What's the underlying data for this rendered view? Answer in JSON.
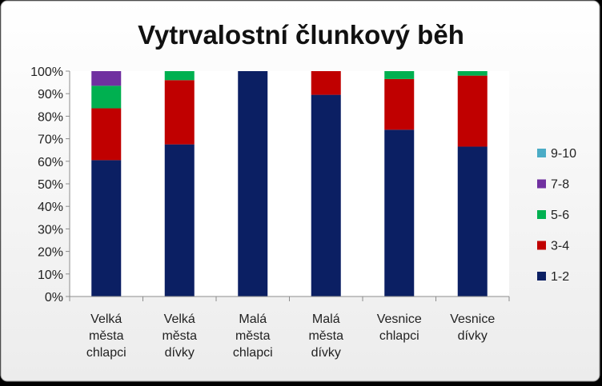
{
  "chart_data": {
    "type": "bar",
    "stacked": true,
    "percent_stacked": true,
    "title": "Vytrvalostní člunkový běh",
    "categories": [
      [
        "Velká",
        "města",
        "chlapci"
      ],
      [
        "Velká",
        "města",
        "dívky"
      ],
      [
        "Malá",
        "města",
        "chlapci"
      ],
      [
        "Malá",
        "města",
        "dívky"
      ],
      [
        "Vesnice",
        "chlapci"
      ],
      [
        "Vesnice",
        "dívky"
      ]
    ],
    "series": [
      {
        "name": "1-2",
        "color": "#0b1f63",
        "values": [
          60.5,
          67.5,
          100,
          89.5,
          74,
          66.5
        ]
      },
      {
        "name": "3-4",
        "color": "#c00000",
        "values": [
          23,
          28.5,
          0,
          10.5,
          22.5,
          31.5
        ]
      },
      {
        "name": "5-6",
        "color": "#00b050",
        "values": [
          10,
          4,
          0,
          0,
          3.5,
          2
        ]
      },
      {
        "name": "7-8",
        "color": "#7030a0",
        "values": [
          6.5,
          0,
          0,
          0,
          0,
          0
        ]
      },
      {
        "name": "9-10",
        "color": "#4bacc6",
        "values": [
          0,
          0,
          0,
          0,
          0,
          0
        ]
      }
    ],
    "yticks": [
      "0%",
      "10%",
      "20%",
      "30%",
      "40%",
      "50%",
      "60%",
      "70%",
      "80%",
      "90%",
      "100%"
    ],
    "ylim": [
      0,
      100
    ],
    "grid": false,
    "legend_position": "right"
  }
}
